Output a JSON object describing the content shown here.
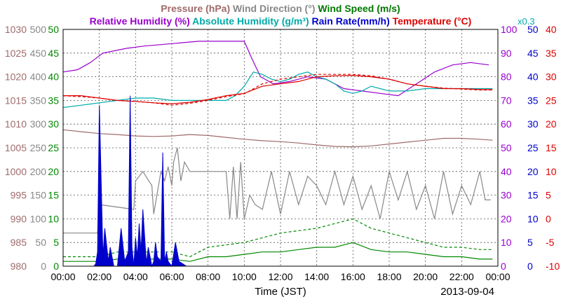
{
  "chart_data": {
    "type": "line",
    "date": "2013-09-04",
    "xlabel": "Time (JST)",
    "x_ticks": [
      "00:00",
      "02:00",
      "04:00",
      "06:00",
      "08:00",
      "10:00",
      "12:00",
      "14:00",
      "16:00",
      "18:00",
      "20:00",
      "22:00",
      "00:00"
    ],
    "xlim": [
      0,
      24
    ],
    "grid": true,
    "scale_note": "x0.3",
    "header": [
      {
        "text": "Pressure (hPa)",
        "color": "#a06a6a"
      },
      {
        "text": "Wind Direction (°)",
        "color": "#888888"
      },
      {
        "text": "Wind Speed (m/s)",
        "color": "#007700"
      }
    ],
    "header2": [
      {
        "text": "Relative Humidity (%)",
        "color": "#9900cc"
      },
      {
        "text": "Absolute Humidity (g/m³)",
        "color": "#00aaaa"
      },
      {
        "text": "Rain Rate(mm/h)",
        "color": "#0000cc"
      },
      {
        "text": "Temperature (°C)",
        "color": "#dd0000"
      }
    ],
    "axes": [
      {
        "name": "pressure",
        "side": "left",
        "color": "#a06a6a",
        "lim": [
          980,
          1030
        ],
        "ticks": [
          "980",
          "985",
          "990",
          "995",
          "1000",
          "1005",
          "1010",
          "1015",
          "1020",
          "1025",
          "1030"
        ]
      },
      {
        "name": "wind_direction",
        "side": "left",
        "color": "#888888",
        "lim": [
          0,
          500
        ],
        "ticks": [
          "0",
          "50",
          "100",
          "150",
          "200",
          "250",
          "300",
          "350",
          "400",
          "450",
          "500"
        ]
      },
      {
        "name": "wind_speed",
        "side": "left",
        "color": "#008800",
        "lim": [
          0,
          50
        ],
        "ticks": [
          "0",
          "5",
          "10",
          "15",
          "20",
          "25",
          "30",
          "35",
          "40",
          "45",
          "50"
        ]
      },
      {
        "name": "relative_humidity",
        "side": "right",
        "color": "#9900cc",
        "lim": [
          0,
          100
        ],
        "ticks": [
          "0",
          "10",
          "20",
          "30",
          "40",
          "50",
          "60",
          "70",
          "80",
          "90",
          "100"
        ]
      },
      {
        "name": "rain_rate",
        "side": "right",
        "color": "#0000cc",
        "lim": [
          0,
          50
        ],
        "ticks": [
          "0",
          "5",
          "10",
          "15",
          "20",
          "25",
          "30",
          "35",
          "40",
          "45",
          "50"
        ]
      },
      {
        "name": "temperature",
        "side": "right",
        "color": "#dd0000",
        "lim": [
          -10,
          40
        ],
        "ticks": [
          "-10",
          "-5",
          "0",
          "5",
          "10",
          "15",
          "20",
          "25",
          "30",
          "35",
          "40"
        ]
      }
    ],
    "series": [
      {
        "name": "Relative Humidity",
        "axis": "relative_humidity",
        "color": "#9900cc",
        "x": [
          0,
          0.8,
          1.5,
          2.2,
          3.5,
          4.5,
          6.0,
          7.5,
          9.0,
          10.0,
          10.4,
          10.9,
          11.6,
          12.5,
          13.5,
          14.5,
          15.5,
          16.5,
          17.5,
          18.5,
          19.5,
          20.5,
          21.5,
          22.5,
          23.5
        ],
        "y": [
          82,
          83,
          86,
          90,
          92,
          93,
          94,
          95,
          95,
          95,
          88,
          80,
          77,
          78,
          80,
          79,
          75,
          74,
          73,
          72,
          77,
          82,
          85,
          86,
          85
        ]
      },
      {
        "name": "Absolute Humidity",
        "axis": "relative_humidity",
        "color": "#00aaaa",
        "x": [
          0,
          1,
          2,
          3,
          4,
          5,
          6,
          7,
          8,
          9,
          9.5,
          10,
          10.5,
          11,
          11.5,
          12,
          12.5,
          13,
          13.5,
          14,
          14.5,
          15,
          15.5,
          16,
          16.5,
          17,
          17.5,
          18,
          18.5,
          19,
          20,
          21,
          22,
          23,
          23.7
        ],
        "y": [
          67,
          68,
          69,
          70,
          71,
          71,
          70,
          70,
          70,
          70,
          72,
          76,
          82,
          81,
          79,
          78,
          79,
          81,
          82,
          80,
          79,
          77,
          74,
          73,
          74,
          76,
          75,
          74,
          74,
          74,
          75,
          75,
          75,
          75,
          75
        ]
      },
      {
        "name": "Temperature",
        "axis": "temperature",
        "color": "#dd0000",
        "x": [
          0,
          1,
          2,
          3,
          4,
          5,
          6,
          7,
          8,
          9,
          10,
          11,
          12,
          13,
          14,
          15,
          16,
          17,
          18,
          19,
          20,
          21,
          22,
          23,
          23.7
        ],
        "y": [
          26,
          26,
          25.5,
          25,
          24.8,
          24.5,
          24.3,
          24.6,
          25.2,
          26,
          26.5,
          28,
          28.5,
          29,
          30,
          30.2,
          30.3,
          30,
          29.5,
          28.5,
          28,
          27.5,
          27.5,
          27.3,
          27.3
        ]
      },
      {
        "name": "Temperature (dashed)",
        "axis": "temperature",
        "color": "#dd0000",
        "dashed": true,
        "x": [
          0,
          1,
          2,
          3,
          4,
          5,
          6,
          7,
          8,
          9,
          10,
          11,
          12,
          13,
          14,
          15,
          16,
          17,
          18,
          19,
          20,
          21,
          22,
          23,
          23.7
        ],
        "y": [
          26,
          25.8,
          25.5,
          25,
          24.8,
          24.5,
          24,
          24.4,
          25,
          25.8,
          26.4,
          28.5,
          29.5,
          30,
          30.5,
          30.5,
          30.5,
          30.2,
          29.5,
          28.5,
          28,
          27.6,
          27.4,
          27.2,
          27.2
        ]
      },
      {
        "name": "Pressure",
        "axis": "pressure",
        "color": "#a06a6a",
        "x": [
          0,
          1,
          2,
          3,
          4,
          5,
          6,
          7,
          8,
          9,
          10,
          11,
          12,
          13,
          14,
          15,
          16,
          17,
          18,
          19,
          20,
          21,
          22,
          23,
          23.7
        ],
        "y": [
          1008.8,
          1008.4,
          1008,
          1007.8,
          1007.5,
          1007.4,
          1007.5,
          1007.8,
          1007.6,
          1007.2,
          1006.8,
          1006.5,
          1006.3,
          1006,
          1005.6,
          1005.3,
          1005.2,
          1005.4,
          1005.8,
          1006.2,
          1006.6,
          1007,
          1007,
          1006.8,
          1006.6
        ]
      },
      {
        "name": "Wind Direction",
        "axis": "wind_direction",
        "color": "#888888",
        "x": [
          0,
          1.9,
          2.0,
          3.9,
          4.0,
          4.4,
          4.9,
          5.0,
          5.4,
          5.6,
          5.8,
          6.0,
          6.1,
          6.3,
          6.5,
          6.7,
          7.0,
          8.0,
          9.0,
          9.2,
          9.4,
          9.6,
          9.8,
          10.0,
          10.3,
          10.6,
          11,
          11.5,
          12,
          12.5,
          13,
          13.5,
          14,
          14.5,
          15,
          15.5,
          16,
          16.5,
          17,
          17.5,
          18,
          18.5,
          19,
          19.5,
          20,
          20.5,
          21,
          21.5,
          22,
          22.5,
          23,
          23.3,
          23.6
        ],
        "y": [
          70,
          70,
          130,
          120,
          180,
          200,
          170,
          110,
          200,
          180,
          210,
          170,
          220,
          250,
          180,
          220,
          200,
          200,
          200,
          100,
          210,
          100,
          220,
          100,
          150,
          130,
          120,
          200,
          110,
          200,
          130,
          190,
          170,
          130,
          200,
          130,
          190,
          120,
          170,
          100,
          200,
          140,
          200,
          120,
          170,
          100,
          200,
          110,
          170,
          130,
          200,
          140,
          140
        ]
      },
      {
        "name": "Wind Speed",
        "axis": "wind_speed",
        "color": "#008800",
        "x": [
          0,
          1,
          2,
          3,
          4,
          5,
          6,
          7,
          8,
          9,
          10,
          11,
          12,
          13,
          14,
          15,
          16,
          17,
          18,
          19,
          20,
          21,
          22,
          23,
          23.7
        ],
        "y": [
          1,
          1,
          1,
          1.5,
          1.5,
          1.5,
          1.5,
          1,
          2,
          2,
          2.5,
          3,
          3,
          3.5,
          4,
          4,
          5,
          3.5,
          3,
          3,
          2.5,
          2,
          2,
          1.5,
          1.5
        ]
      },
      {
        "name": "Wind Speed (gust)",
        "axis": "wind_speed",
        "color": "#008800",
        "dashed": true,
        "x": [
          0,
          1,
          2,
          3,
          4,
          5,
          6,
          7,
          8,
          9,
          10,
          11,
          12,
          13,
          14,
          15,
          16,
          17,
          18,
          19,
          20,
          21,
          22,
          23,
          23.7
        ],
        "y": [
          2,
          2,
          2,
          3,
          3,
          3,
          3,
          2,
          4,
          4.5,
          5,
          6,
          7,
          7.5,
          8,
          9,
          10,
          8,
          7,
          6,
          5,
          4,
          4,
          3.5,
          3.5
        ]
      },
      {
        "name": "Rain Rate",
        "axis": "rain_rate",
        "color": "#0000cc",
        "fill": true,
        "x": [
          0,
          1.7,
          1.8,
          1.9,
          2.0,
          2.2,
          2.3,
          2.5,
          2.6,
          2.8,
          3.0,
          3.2,
          3.4,
          3.6,
          3.7,
          3.8,
          3.9,
          4.0,
          4.1,
          4.2,
          4.3,
          4.4,
          4.6,
          4.7,
          4.9,
          5.0,
          5.1,
          5.2,
          5.4,
          5.5,
          5.6,
          5.7,
          5.8,
          6.0,
          6.2,
          6.4,
          6.6,
          6.8,
          7.0,
          9.0,
          24
        ],
        "y": [
          0,
          0,
          0.5,
          3,
          34,
          2,
          8,
          1,
          4,
          0,
          0,
          8,
          1,
          3,
          36,
          4,
          0,
          6,
          2,
          9,
          3,
          12,
          0.5,
          4,
          0,
          1,
          5,
          2,
          1,
          24,
          1,
          3,
          1,
          0,
          5,
          1,
          0.5,
          0,
          0,
          0,
          0
        ]
      }
    ]
  }
}
